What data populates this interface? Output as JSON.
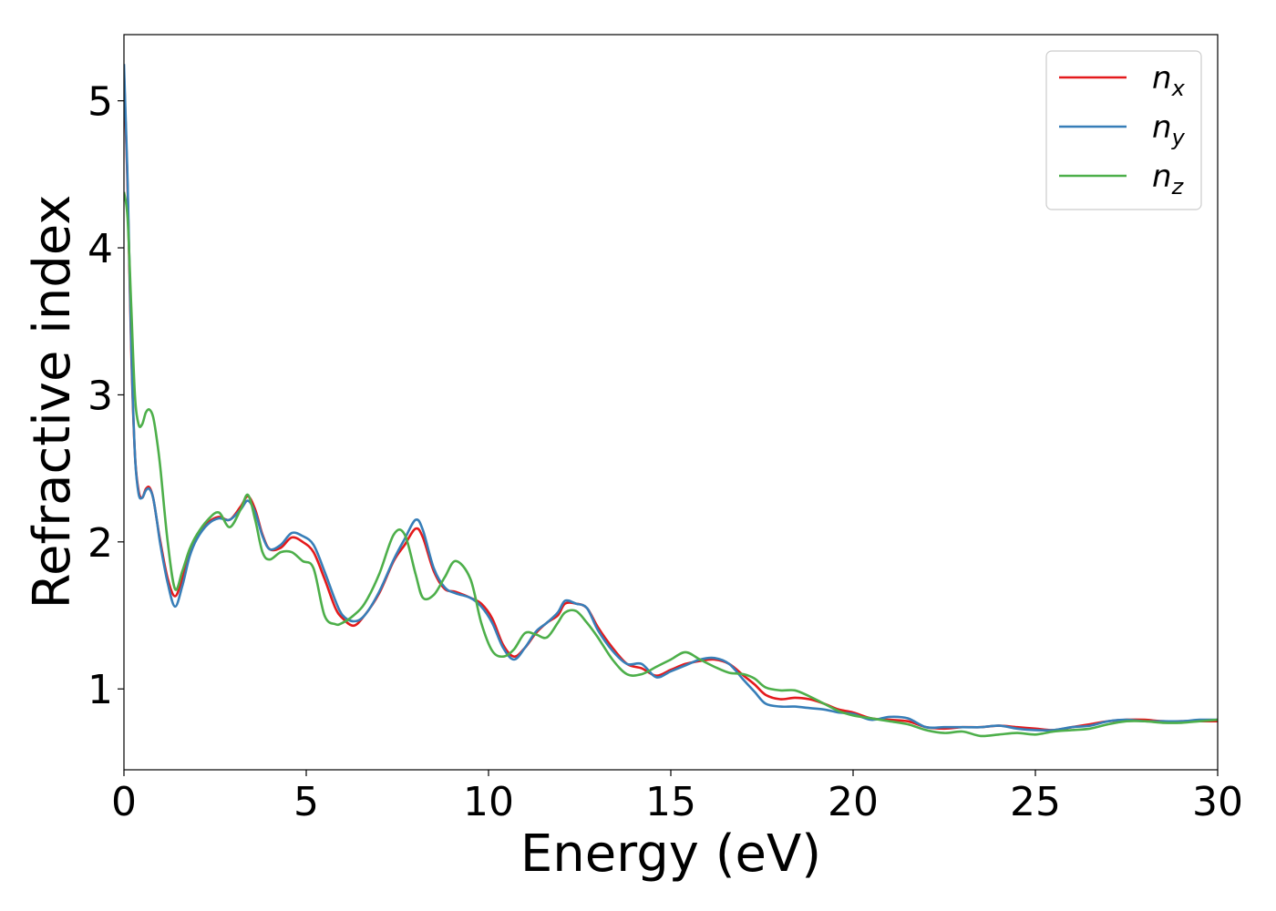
{
  "chart_data": {
    "type": "line",
    "xlabel": "Energy (eV)",
    "ylabel": "Refractive index",
    "xlim": [
      0,
      30
    ],
    "ylim": [
      0.45,
      5.45
    ],
    "xticks": [
      0,
      5,
      10,
      15,
      20,
      25,
      30
    ],
    "xtick_labels": [
      "0",
      "5",
      "10",
      "15",
      "20",
      "25",
      "30"
    ],
    "yticks": [
      1,
      2,
      3,
      4,
      5
    ],
    "ytick_labels": [
      "1",
      "2",
      "3",
      "4",
      "5"
    ],
    "grid": false,
    "legend_position": "top-right",
    "series": [
      {
        "name": "n_x",
        "label_base": "n",
        "label_sub": "x",
        "color": "#e41a1c",
        "x": [
          0,
          0.1,
          0.2,
          0.3,
          0.4,
          0.5,
          0.6,
          0.7,
          0.8,
          0.9,
          1.0,
          1.2,
          1.4,
          1.6,
          1.8,
          2.0,
          2.3,
          2.6,
          2.9,
          3.2,
          3.4,
          3.6,
          3.8,
          4.0,
          4.3,
          4.6,
          4.9,
          5.2,
          5.5,
          5.8,
          6.0,
          6.3,
          6.6,
          7.0,
          7.4,
          7.7,
          8.0,
          8.2,
          8.5,
          8.8,
          9.1,
          9.5,
          9.8,
          10.1,
          10.4,
          10.7,
          11.0,
          11.3,
          11.6,
          11.9,
          12.1,
          12.4,
          12.7,
          13.0,
          13.4,
          13.8,
          14.2,
          14.6,
          15.0,
          15.4,
          15.8,
          16.2,
          16.6,
          17.0,
          17.3,
          17.6,
          18.0,
          18.4,
          18.8,
          19.2,
          19.6,
          20.0,
          20.5,
          21.0,
          21.5,
          22.0,
          22.5,
          23.0,
          23.5,
          24.0,
          24.5,
          25.0,
          25.5,
          26.0,
          26.5,
          27.0,
          27.5,
          28.0,
          28.5,
          29.0,
          29.5,
          30.0
        ],
        "y": [
          5.2,
          4.4,
          3.3,
          2.6,
          2.35,
          2.3,
          2.36,
          2.37,
          2.3,
          2.15,
          2.0,
          1.75,
          1.63,
          1.75,
          1.92,
          2.03,
          2.13,
          2.17,
          2.15,
          2.24,
          2.31,
          2.22,
          2.05,
          1.95,
          1.96,
          2.03,
          2.0,
          1.93,
          1.75,
          1.55,
          1.48,
          1.43,
          1.5,
          1.65,
          1.87,
          1.98,
          2.09,
          2.03,
          1.8,
          1.68,
          1.66,
          1.62,
          1.58,
          1.48,
          1.3,
          1.22,
          1.28,
          1.38,
          1.45,
          1.5,
          1.58,
          1.58,
          1.55,
          1.42,
          1.28,
          1.17,
          1.14,
          1.09,
          1.13,
          1.17,
          1.19,
          1.2,
          1.17,
          1.09,
          1.03,
          0.96,
          0.93,
          0.94,
          0.93,
          0.9,
          0.86,
          0.84,
          0.8,
          0.79,
          0.78,
          0.74,
          0.73,
          0.74,
          0.74,
          0.75,
          0.74,
          0.73,
          0.72,
          0.74,
          0.76,
          0.78,
          0.79,
          0.79,
          0.78,
          0.78,
          0.78,
          0.78
        ]
      },
      {
        "name": "n_y",
        "label_base": "n",
        "label_sub": "y",
        "color": "#377eb8",
        "x": [
          0,
          0.1,
          0.2,
          0.3,
          0.4,
          0.5,
          0.6,
          0.7,
          0.8,
          0.9,
          1.0,
          1.2,
          1.4,
          1.6,
          1.8,
          2.0,
          2.3,
          2.6,
          2.9,
          3.2,
          3.4,
          3.6,
          3.8,
          4.0,
          4.3,
          4.6,
          4.9,
          5.2,
          5.5,
          5.8,
          6.0,
          6.3,
          6.6,
          7.0,
          7.4,
          7.7,
          8.0,
          8.2,
          8.5,
          8.8,
          9.1,
          9.5,
          9.8,
          10.1,
          10.4,
          10.7,
          11.0,
          11.3,
          11.6,
          11.9,
          12.1,
          12.4,
          12.7,
          13.0,
          13.4,
          13.8,
          14.2,
          14.6,
          15.0,
          15.4,
          15.8,
          16.2,
          16.6,
          17.0,
          17.3,
          17.6,
          18.0,
          18.4,
          18.8,
          19.2,
          19.6,
          20.0,
          20.5,
          21.0,
          21.5,
          22.0,
          22.5,
          23.0,
          23.5,
          24.0,
          24.5,
          25.0,
          25.5,
          26.0,
          26.5,
          27.0,
          27.5,
          28.0,
          28.5,
          29.0,
          29.5,
          30.0
        ],
        "y": [
          5.25,
          4.45,
          3.35,
          2.6,
          2.33,
          2.3,
          2.35,
          2.36,
          2.3,
          2.15,
          1.98,
          1.72,
          1.56,
          1.7,
          1.9,
          2.02,
          2.12,
          2.16,
          2.15,
          2.22,
          2.28,
          2.2,
          2.04,
          1.95,
          1.98,
          2.06,
          2.04,
          1.98,
          1.8,
          1.6,
          1.5,
          1.46,
          1.5,
          1.66,
          1.88,
          2.02,
          2.15,
          2.08,
          1.82,
          1.69,
          1.65,
          1.62,
          1.56,
          1.45,
          1.28,
          1.2,
          1.28,
          1.39,
          1.45,
          1.52,
          1.6,
          1.58,
          1.55,
          1.4,
          1.26,
          1.17,
          1.17,
          1.08,
          1.12,
          1.16,
          1.2,
          1.21,
          1.17,
          1.06,
          0.98,
          0.9,
          0.88,
          0.88,
          0.87,
          0.86,
          0.84,
          0.83,
          0.79,
          0.81,
          0.8,
          0.74,
          0.74,
          0.74,
          0.74,
          0.75,
          0.73,
          0.72,
          0.72,
          0.74,
          0.75,
          0.78,
          0.79,
          0.78,
          0.78,
          0.78,
          0.79,
          0.79
        ]
      },
      {
        "name": "n_z",
        "label_base": "n",
        "label_sub": "z",
        "color": "#4daf4a",
        "x": [
          0,
          0.1,
          0.2,
          0.3,
          0.4,
          0.5,
          0.6,
          0.7,
          0.8,
          0.9,
          1.0,
          1.2,
          1.4,
          1.6,
          1.8,
          2.0,
          2.3,
          2.6,
          2.9,
          3.2,
          3.4,
          3.6,
          3.8,
          4.0,
          4.3,
          4.6,
          4.9,
          5.2,
          5.5,
          5.8,
          6.0,
          6.3,
          6.6,
          7.0,
          7.4,
          7.7,
          8.0,
          8.2,
          8.5,
          8.8,
          9.1,
          9.5,
          9.8,
          10.1,
          10.4,
          10.7,
          11.0,
          11.3,
          11.6,
          11.9,
          12.1,
          12.4,
          12.7,
          13.0,
          13.4,
          13.8,
          14.2,
          14.6,
          15.0,
          15.4,
          15.8,
          16.2,
          16.6,
          17.0,
          17.3,
          17.6,
          18.0,
          18.4,
          18.8,
          19.2,
          19.6,
          20.0,
          20.5,
          21.0,
          21.5,
          22.0,
          22.5,
          23.0,
          23.5,
          24.0,
          24.5,
          25.0,
          25.5,
          26.0,
          26.5,
          27.0,
          27.5,
          28.0,
          28.5,
          29.0,
          29.5,
          30.0
        ],
        "y": [
          4.38,
          4.2,
          3.6,
          3.0,
          2.8,
          2.8,
          2.88,
          2.9,
          2.85,
          2.7,
          2.5,
          2.0,
          1.68,
          1.8,
          1.95,
          2.05,
          2.15,
          2.2,
          2.1,
          2.22,
          2.32,
          2.15,
          1.93,
          1.88,
          1.93,
          1.93,
          1.87,
          1.82,
          1.5,
          1.44,
          1.45,
          1.5,
          1.58,
          1.78,
          2.05,
          2.05,
          1.78,
          1.62,
          1.64,
          1.76,
          1.87,
          1.75,
          1.45,
          1.26,
          1.22,
          1.27,
          1.38,
          1.37,
          1.35,
          1.45,
          1.52,
          1.53,
          1.45,
          1.35,
          1.2,
          1.1,
          1.1,
          1.15,
          1.2,
          1.25,
          1.2,
          1.15,
          1.11,
          1.1,
          1.07,
          1.01,
          0.99,
          0.99,
          0.95,
          0.9,
          0.85,
          0.82,
          0.8,
          0.78,
          0.76,
          0.72,
          0.7,
          0.71,
          0.68,
          0.69,
          0.7,
          0.69,
          0.71,
          0.72,
          0.73,
          0.76,
          0.78,
          0.78,
          0.77,
          0.77,
          0.78,
          0.79
        ]
      }
    ]
  }
}
